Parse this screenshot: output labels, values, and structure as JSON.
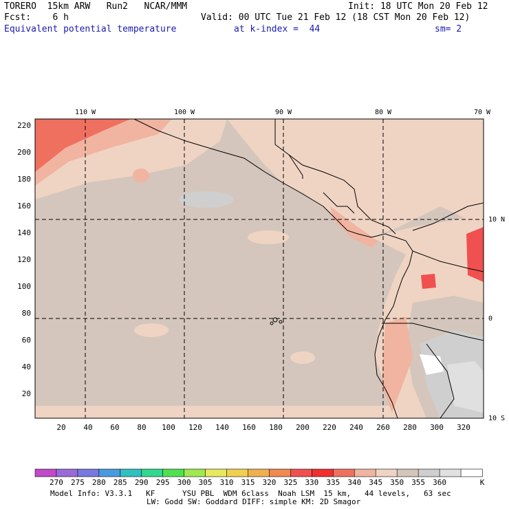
{
  "header": {
    "model": "TORERO  15km ARW   Run2   NCAR/MMM",
    "init": "Init: 18 UTC Mon 20 Feb 12",
    "fcst": "Fcst:    6 h",
    "valid": "Valid: 00 UTC Tue 21 Feb 12 (18 CST Mon 20 Feb 12)",
    "field": "Equivalent potential temperature",
    "level": "at k-index =  44",
    "smoothing": "sm= 2"
  },
  "map": {
    "lon_labels": [
      "110 W",
      "100 W",
      "90 W",
      "80 W",
      "70 W"
    ],
    "lat_labels": [
      "10 N",
      "0",
      "10 S"
    ],
    "x_ticks": [
      "20",
      "40",
      "60",
      "80",
      "100",
      "120",
      "140",
      "160",
      "180",
      "200",
      "220",
      "240",
      "260",
      "280",
      "300",
      "320"
    ],
    "y_ticks": [
      "20",
      "40",
      "60",
      "80",
      "100",
      "120",
      "140",
      "160",
      "180",
      "200",
      "220"
    ]
  },
  "colorbar": {
    "levels": [
      "270",
      "275",
      "280",
      "285",
      "290",
      "295",
      "300",
      "305",
      "310",
      "315",
      "320",
      "325",
      "330",
      "335",
      "340",
      "345",
      "350",
      "355",
      "360"
    ],
    "unit": "K",
    "colors": [
      "#c04ac8",
      "#9a6ad8",
      "#7878e0",
      "#4a9ae0",
      "#30c0c0",
      "#30d890",
      "#50e050",
      "#a0e850",
      "#e8e860",
      "#f0d050",
      "#f0b050",
      "#f08a50",
      "#f05050",
      "#f03030",
      "#f07060",
      "#f0b4a0",
      "#efd4c3",
      "#d4c6bc",
      "#cfcfcf",
      "#e0e0e0",
      "#ffffff"
    ]
  },
  "footer": {
    "line1": "Model Info: V3.3.1   KF      YSU PBL  WDM 6class  Noah LSM  15 km,   44 levels,   63 sec",
    "line2": "LW: Godd SW: Goddard DIFF: simple KM: 2D Smagor"
  }
}
